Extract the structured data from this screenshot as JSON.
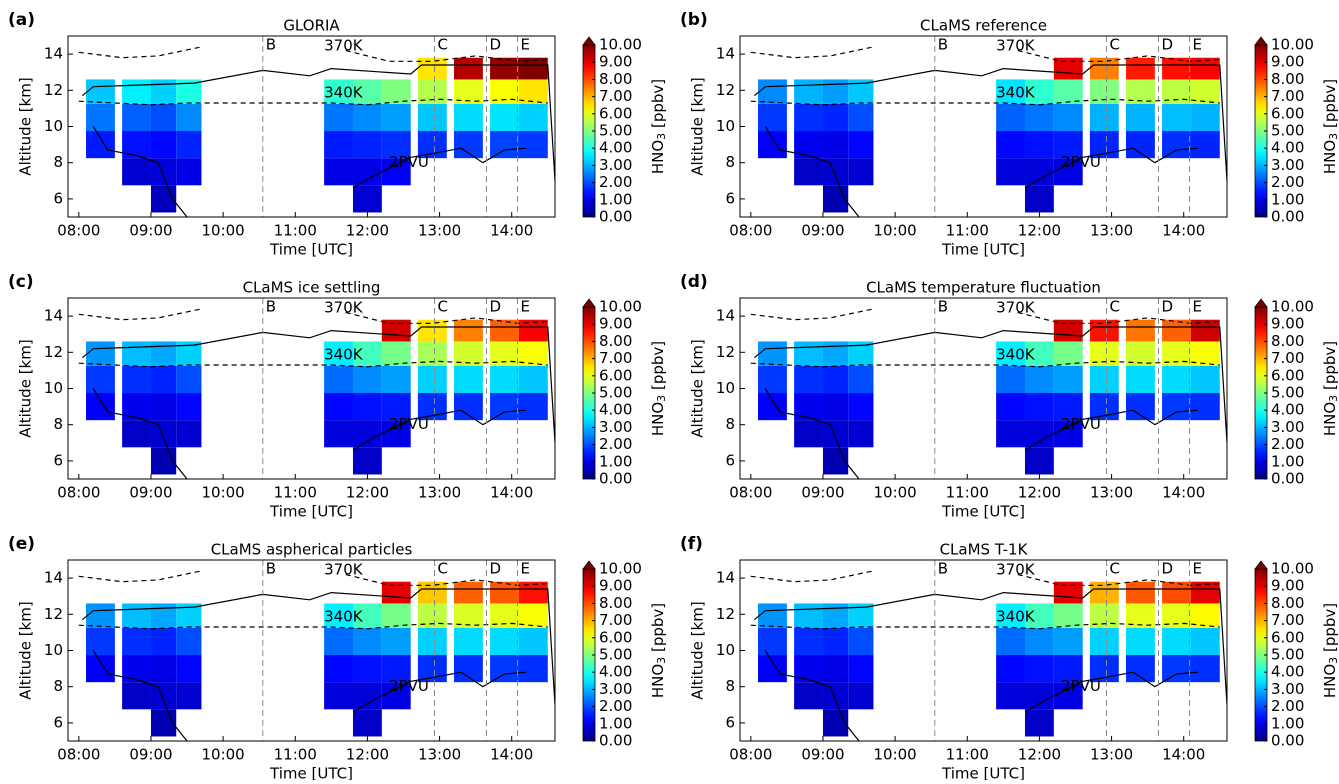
{
  "chart_data": [
    {
      "type": "heatmap",
      "label": "(a)",
      "title": "GLORIA",
      "xlabel": "Time [UTC]",
      "ylabel": "Altitude [km]",
      "xlim": [
        7.85,
        14.6
      ],
      "ylim": [
        5,
        15
      ],
      "xticks": [
        {
          "value": 8,
          "label": "08:00"
        },
        {
          "value": 9,
          "label": "09:00"
        },
        {
          "value": 10,
          "label": "10:00"
        },
        {
          "value": 11,
          "label": "11:00"
        },
        {
          "value": 12,
          "label": "12:00"
        },
        {
          "value": 13,
          "label": "13:00"
        },
        {
          "value": 14,
          "label": "14:00"
        }
      ],
      "yticks": [
        6,
        8,
        10,
        12,
        14
      ],
      "x": [
        8.3,
        8.8,
        9.2,
        9.5,
        11.6,
        12.0,
        12.4,
        12.9,
        13.4,
        13.9,
        14.3
      ],
      "y": [
        6,
        7.5,
        9,
        10.5,
        12,
        13.2
      ],
      "z": [
        [
          null,
          null,
          0.6,
          null,
          null,
          0.8,
          null,
          null,
          null,
          null,
          null
        ],
        [
          null,
          0.8,
          0.9,
          1.0,
          1.0,
          1.0,
          1.2,
          null,
          null,
          null,
          null
        ],
        [
          1.5,
          1.4,
          1.3,
          1.6,
          1.5,
          1.6,
          1.7,
          1.7,
          1.8,
          1.9,
          1.8
        ],
        [
          2.4,
          2.2,
          2.0,
          2.6,
          2.4,
          2.6,
          2.8,
          3.2,
          3.4,
          3.5,
          3.3
        ],
        [
          3.2,
          3.6,
          3.3,
          4.0,
          4.2,
          4.6,
          5.0,
          5.5,
          6.0,
          6.2,
          6.5
        ],
        [
          null,
          null,
          null,
          null,
          null,
          null,
          null,
          6.5,
          9.5,
          9.8,
          10.0
        ]
      ]
    },
    {
      "type": "heatmap",
      "label": "(b)",
      "title": "CLaMS reference",
      "xlabel": "Time [UTC]",
      "ylabel": "Altitude [km]",
      "xlim": [
        7.85,
        14.6
      ],
      "ylim": [
        5,
        15
      ],
      "xticks": [
        {
          "value": 8,
          "label": "08:00"
        },
        {
          "value": 9,
          "label": "09:00"
        },
        {
          "value": 10,
          "label": "10:00"
        },
        {
          "value": 11,
          "label": "11:00"
        },
        {
          "value": 12,
          "label": "12:00"
        },
        {
          "value": 13,
          "label": "13:00"
        },
        {
          "value": 14,
          "label": "14:00"
        }
      ],
      "yticks": [
        6,
        8,
        10,
        12,
        14
      ],
      "x": [
        8.3,
        8.8,
        9.2,
        9.5,
        11.6,
        12.0,
        12.4,
        12.9,
        13.4,
        13.9,
        14.3
      ],
      "y": [
        6,
        7.5,
        9,
        10.5,
        12,
        13.2
      ],
      "z": [
        [
          null,
          null,
          0.5,
          null,
          null,
          0.7,
          null,
          null,
          null,
          null,
          null
        ],
        [
          null,
          0.7,
          0.8,
          0.8,
          0.9,
          0.9,
          1.0,
          null,
          null,
          null,
          null
        ],
        [
          1.2,
          1.1,
          1.0,
          1.3,
          1.3,
          1.4,
          1.5,
          1.6,
          1.6,
          1.7,
          1.6
        ],
        [
          1.8,
          1.7,
          1.6,
          2.0,
          2.2,
          2.4,
          2.6,
          3.0,
          3.0,
          3.1,
          3.0
        ],
        [
          2.6,
          3.0,
          2.8,
          3.2,
          3.5,
          4.2,
          4.6,
          5.0,
          5.5,
          5.6,
          5.8
        ],
        [
          null,
          null,
          null,
          null,
          null,
          null,
          9.0,
          7.5,
          8.5,
          8.6,
          8.8
        ]
      ]
    },
    {
      "type": "heatmap",
      "label": "(c)",
      "title": "CLaMS ice settling",
      "xlabel": "Time [UTC]",
      "ylabel": "Altitude [km]",
      "xlim": [
        7.85,
        14.6
      ],
      "ylim": [
        5,
        15
      ],
      "xticks": [
        {
          "value": 8,
          "label": "08:00"
        },
        {
          "value": 9,
          "label": "09:00"
        },
        {
          "value": 10,
          "label": "10:00"
        },
        {
          "value": 11,
          "label": "11:00"
        },
        {
          "value": 12,
          "label": "12:00"
        },
        {
          "value": 13,
          "label": "13:00"
        },
        {
          "value": 14,
          "label": "14:00"
        }
      ],
      "yticks": [
        6,
        8,
        10,
        12,
        14
      ],
      "x": [
        8.3,
        8.8,
        9.2,
        9.5,
        11.6,
        12.0,
        12.4,
        12.9,
        13.4,
        13.9,
        14.3
      ],
      "y": [
        6,
        7.5,
        9,
        10.5,
        12,
        13.2
      ],
      "z": [
        [
          null,
          null,
          0.5,
          null,
          null,
          0.7,
          null,
          null,
          null,
          null,
          null
        ],
        [
          null,
          0.7,
          0.8,
          0.8,
          0.9,
          0.9,
          1.0,
          null,
          null,
          null,
          null
        ],
        [
          1.2,
          1.1,
          1.0,
          1.3,
          1.3,
          1.4,
          1.5,
          1.7,
          1.7,
          1.8,
          1.7
        ],
        [
          1.8,
          1.7,
          1.6,
          2.0,
          2.3,
          2.6,
          2.8,
          3.3,
          3.4,
          3.4,
          3.2
        ],
        [
          2.7,
          3.1,
          2.9,
          3.3,
          3.6,
          4.4,
          4.9,
          5.4,
          5.8,
          6.0,
          6.2
        ],
        [
          null,
          null,
          null,
          null,
          null,
          null,
          9.2,
          6.5,
          7.5,
          7.8,
          8.8
        ]
      ]
    },
    {
      "type": "heatmap",
      "label": "(d)",
      "title": "CLaMS temperature fluctuation",
      "xlabel": "Time [UTC]",
      "ylabel": "Altitude [km]",
      "xlim": [
        7.85,
        14.6
      ],
      "ylim": [
        5,
        15
      ],
      "xticks": [
        {
          "value": 8,
          "label": "08:00"
        },
        {
          "value": 9,
          "label": "09:00"
        },
        {
          "value": 10,
          "label": "10:00"
        },
        {
          "value": 11,
          "label": "11:00"
        },
        {
          "value": 12,
          "label": "12:00"
        },
        {
          "value": 13,
          "label": "13:00"
        },
        {
          "value": 14,
          "label": "14:00"
        }
      ],
      "yticks": [
        6,
        8,
        10,
        12,
        14
      ],
      "x": [
        8.3,
        8.8,
        9.2,
        9.5,
        11.6,
        12.0,
        12.4,
        12.9,
        13.4,
        13.9,
        14.3
      ],
      "y": [
        6,
        7.5,
        9,
        10.5,
        12,
        13.2
      ],
      "z": [
        [
          null,
          null,
          0.5,
          null,
          null,
          0.7,
          null,
          null,
          null,
          null,
          null
        ],
        [
          null,
          0.7,
          0.8,
          0.8,
          0.9,
          0.9,
          1.0,
          null,
          null,
          null,
          null
        ],
        [
          1.2,
          1.1,
          1.0,
          1.3,
          1.3,
          1.4,
          1.5,
          1.7,
          1.7,
          1.8,
          1.7
        ],
        [
          1.8,
          1.7,
          1.6,
          2.0,
          2.3,
          2.6,
          2.8,
          3.3,
          3.4,
          3.4,
          3.2
        ],
        [
          2.7,
          3.1,
          2.9,
          3.3,
          3.6,
          4.4,
          4.9,
          6.0,
          5.8,
          6.0,
          6.2
        ],
        [
          null,
          null,
          null,
          null,
          null,
          null,
          9.2,
          8.6,
          7.6,
          7.8,
          9.2
        ]
      ]
    },
    {
      "type": "heatmap",
      "label": "(e)",
      "title": "CLaMS aspherical particles",
      "xlabel": "Time [UTC]",
      "ylabel": "Altitude [km]",
      "xlim": [
        7.85,
        14.6
      ],
      "ylim": [
        5,
        15
      ],
      "xticks": [
        {
          "value": 8,
          "label": "08:00"
        },
        {
          "value": 9,
          "label": "09:00"
        },
        {
          "value": 10,
          "label": "10:00"
        },
        {
          "value": 11,
          "label": "11:00"
        },
        {
          "value": 12,
          "label": "12:00"
        },
        {
          "value": 13,
          "label": "13:00"
        },
        {
          "value": 14,
          "label": "14:00"
        }
      ],
      "yticks": [
        6,
        8,
        10,
        12,
        14
      ],
      "x": [
        8.3,
        8.8,
        9.2,
        9.5,
        11.6,
        12.0,
        12.4,
        12.9,
        13.4,
        13.9,
        14.3
      ],
      "y": [
        6,
        7.5,
        9,
        10.5,
        12,
        13.2
      ],
      "z": [
        [
          null,
          null,
          0.5,
          null,
          null,
          0.7,
          null,
          null,
          null,
          null,
          null
        ],
        [
          null,
          0.7,
          0.8,
          0.8,
          0.9,
          0.9,
          1.0,
          null,
          null,
          null,
          null
        ],
        [
          1.2,
          1.1,
          1.0,
          1.3,
          1.3,
          1.4,
          1.5,
          1.7,
          1.7,
          1.8,
          1.7
        ],
        [
          1.8,
          1.7,
          1.6,
          2.0,
          2.3,
          2.6,
          2.8,
          3.3,
          3.4,
          3.4,
          3.2
        ],
        [
          2.7,
          3.1,
          2.9,
          3.3,
          3.6,
          4.4,
          4.9,
          5.6,
          5.9,
          6.0,
          6.2
        ],
        [
          null,
          null,
          null,
          null,
          null,
          null,
          9.0,
          6.8,
          7.8,
          7.9,
          8.6
        ]
      ]
    },
    {
      "type": "heatmap",
      "label": "(f)",
      "title": "CLaMS T-1K",
      "xlabel": "Time [UTC]",
      "ylabel": "Altitude [km]",
      "xlim": [
        7.85,
        14.6
      ],
      "ylim": [
        5,
        15
      ],
      "xticks": [
        {
          "value": 8,
          "label": "08:00"
        },
        {
          "value": 9,
          "label": "09:00"
        },
        {
          "value": 10,
          "label": "10:00"
        },
        {
          "value": 11,
          "label": "11:00"
        },
        {
          "value": 12,
          "label": "12:00"
        },
        {
          "value": 13,
          "label": "13:00"
        },
        {
          "value": 14,
          "label": "14:00"
        }
      ],
      "yticks": [
        6,
        8,
        10,
        12,
        14
      ],
      "x": [
        8.3,
        8.8,
        9.2,
        9.5,
        11.6,
        12.0,
        12.4,
        12.9,
        13.4,
        13.9,
        14.3
      ],
      "y": [
        6,
        7.5,
        9,
        10.5,
        12,
        13.2
      ],
      "z": [
        [
          null,
          null,
          0.5,
          null,
          null,
          0.7,
          null,
          null,
          null,
          null,
          null
        ],
        [
          null,
          0.7,
          0.8,
          0.8,
          0.9,
          0.9,
          1.0,
          null,
          null,
          null,
          null
        ],
        [
          1.2,
          1.1,
          1.0,
          1.3,
          1.3,
          1.4,
          1.5,
          1.7,
          1.7,
          1.8,
          1.7
        ],
        [
          1.8,
          1.7,
          1.6,
          2.0,
          2.3,
          2.6,
          2.8,
          3.3,
          3.4,
          3.4,
          3.2
        ],
        [
          2.7,
          3.1,
          2.9,
          3.3,
          3.6,
          4.4,
          4.9,
          5.6,
          6.0,
          6.0,
          6.3
        ],
        [
          null,
          null,
          null,
          null,
          null,
          null,
          9.0,
          7.0,
          7.9,
          8.0,
          9.0
        ]
      ]
    }
  ],
  "colorbar": {
    "colormap": "jet",
    "zlim": [
      0,
      10
    ],
    "ticks": [
      {
        "value": 0,
        "label": "0.00"
      },
      {
        "value": 1,
        "label": "1.00"
      },
      {
        "value": 2,
        "label": "2.00"
      },
      {
        "value": 3,
        "label": "3.00"
      },
      {
        "value": 4,
        "label": "4.00"
      },
      {
        "value": 5,
        "label": "5.00"
      },
      {
        "value": 6,
        "label": "6.00"
      },
      {
        "value": 7,
        "label": "7.00"
      },
      {
        "value": 8,
        "label": "8.00"
      },
      {
        "value": 9,
        "label": "9.00"
      },
      {
        "value": 10,
        "label": "10.00"
      }
    ],
    "label": {
      "main": "HNO",
      "sub": "3",
      "unit": "[ppbv]"
    }
  },
  "overlays": {
    "flight": {
      "x": [
        8.05,
        8.2,
        9.6,
        10.55,
        11.2,
        11.5,
        12.6,
        12.75,
        14.5,
        14.6
      ],
      "y": [
        11.7,
        12.2,
        12.4,
        13.1,
        12.8,
        13.2,
        12.9,
        13.4,
        13.4,
        7.0
      ]
    },
    "theta370": {
      "label": "370K",
      "x": [
        8.0,
        8.6,
        9.1,
        9.7,
        11.0,
        11.7,
        12.3,
        12.9,
        13.5,
        14.1,
        14.5
      ],
      "y": [
        14.1,
        13.8,
        13.9,
        14.4,
        null,
        14.2,
        13.6,
        13.6,
        13.9,
        13.6,
        13.7
      ]
    },
    "theta340": {
      "label": "340K",
      "x": [
        8.0,
        8.5,
        9.0,
        9.5,
        11.5,
        12.0,
        12.5,
        13.0,
        13.5,
        14.0,
        14.5
      ],
      "y": [
        11.4,
        11.3,
        11.2,
        11.3,
        11.3,
        11.2,
        11.4,
        11.5,
        11.4,
        11.5,
        11.3
      ]
    },
    "pv2": {
      "label": "2PVU",
      "x": [
        8.2,
        8.4,
        8.8,
        9.1,
        9.3,
        9.5,
        10.0,
        11.8,
        12.1,
        12.6,
        12.9,
        13.3,
        13.6,
        13.9,
        14.2
      ],
      "y": [
        10.0,
        8.7,
        8.4,
        8.0,
        6.0,
        5.0,
        null,
        6.6,
        7.3,
        8.3,
        8.5,
        8.8,
        8.0,
        8.7,
        8.8
      ]
    },
    "events": {
      "names": [
        "B",
        "C",
        "D",
        "E"
      ],
      "times": [
        10.55,
        12.93,
        13.65,
        14.08
      ]
    }
  }
}
